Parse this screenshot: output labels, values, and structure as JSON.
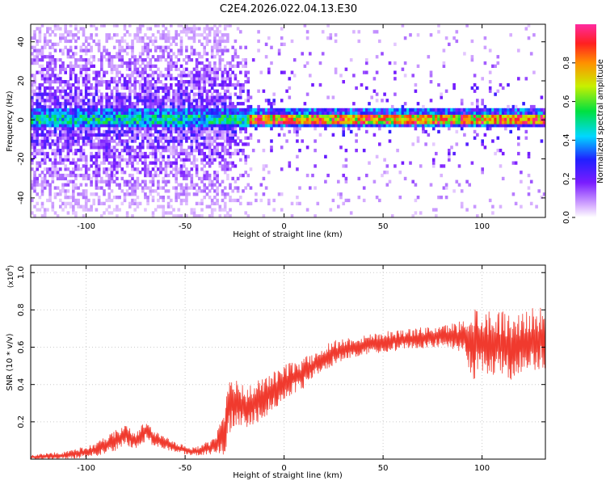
{
  "title": "C2E4.2026.022.04.13.E30",
  "colors": {
    "snr_line": "#f03a2e",
    "axis": "#000000",
    "tick_grid": "#cccccc"
  },
  "chart_data": [
    {
      "type": "heatmap",
      "name": "spectrogram",
      "xlabel": "Height of straight line (km)",
      "ylabel": "Frequency (Hz)",
      "xlim": [
        -128,
        132
      ],
      "ylim": [
        -50,
        49
      ],
      "xticks": [
        -100,
        -50,
        0,
        50,
        100
      ],
      "yticks": [
        -40,
        -20,
        0,
        20,
        40
      ],
      "xtick_labels": [
        "-100",
        "-50",
        "0",
        "50",
        "100"
      ],
      "ytick_labels": [
        "-40",
        "-20",
        "0",
        "20",
        "40"
      ],
      "colorbar": {
        "label": "Normalized spectral amplitude",
        "range": [
          0,
          1
        ],
        "ticks": [
          0.0,
          0.2,
          0.4,
          0.6,
          0.8
        ],
        "tick_labels": [
          "0.0",
          "0.2",
          "0.4",
          "0.6",
          "0.8"
        ],
        "colormap": "rainbow (white-violet-blue-cyan-green-yellow-red)"
      },
      "features": {
        "central_frequency_hz": 0,
        "noisy_region_km": [
          -128,
          -30
        ],
        "narrow_band_from_km": -15
      }
    },
    {
      "type": "line",
      "name": "snr",
      "xlabel": "Height of straight line (km)",
      "ylabel": "SNR (10 * v/v)",
      "yscale_label": "(x10",
      "yscale_exponent": "4",
      "yscale_close": ")",
      "xlim": [
        -128,
        132
      ],
      "ylim": [
        0,
        1.04
      ],
      "xticks": [
        -100,
        -50,
        0,
        50,
        100
      ],
      "yticks": [
        0.2,
        0.4,
        0.6,
        0.8,
        1.0
      ],
      "xtick_labels": [
        "-100",
        "-50",
        "0",
        "50",
        "100"
      ],
      "ytick_labels": [
        "0.2",
        "0.4",
        "0.6",
        "0.8",
        "1.0"
      ],
      "series": [
        {
          "name": "SNR",
          "x": [
            -128,
            -110,
            -95,
            -85,
            -80,
            -75,
            -70,
            -65,
            -55,
            -45,
            -35,
            -30,
            -28,
            -25,
            -20,
            -15,
            -10,
            -5,
            0,
            5,
            10,
            15,
            20,
            25,
            30,
            40,
            50,
            60,
            70,
            80,
            90,
            95,
            100,
            105,
            110,
            115,
            120,
            125,
            132
          ],
          "y": [
            0.01,
            0.02,
            0.05,
            0.1,
            0.13,
            0.1,
            0.15,
            0.11,
            0.06,
            0.04,
            0.07,
            0.15,
            0.3,
            0.32,
            0.27,
            0.3,
            0.33,
            0.37,
            0.41,
            0.44,
            0.46,
            0.5,
            0.54,
            0.57,
            0.59,
            0.61,
            0.63,
            0.64,
            0.65,
            0.66,
            0.66,
            0.62,
            0.64,
            0.62,
            0.63,
            0.6,
            0.62,
            0.64,
            0.65
          ],
          "noise_amplitude": [
            0.01,
            0.015,
            0.025,
            0.04,
            0.04,
            0.03,
            0.04,
            0.03,
            0.02,
            0.015,
            0.03,
            0.09,
            0.12,
            0.1,
            0.08,
            0.08,
            0.08,
            0.07,
            0.07,
            0.06,
            0.06,
            0.05,
            0.05,
            0.05,
            0.04,
            0.04,
            0.04,
            0.04,
            0.04,
            0.04,
            0.06,
            0.15,
            0.12,
            0.13,
            0.12,
            0.13,
            0.12,
            0.12,
            0.12
          ]
        }
      ]
    }
  ]
}
